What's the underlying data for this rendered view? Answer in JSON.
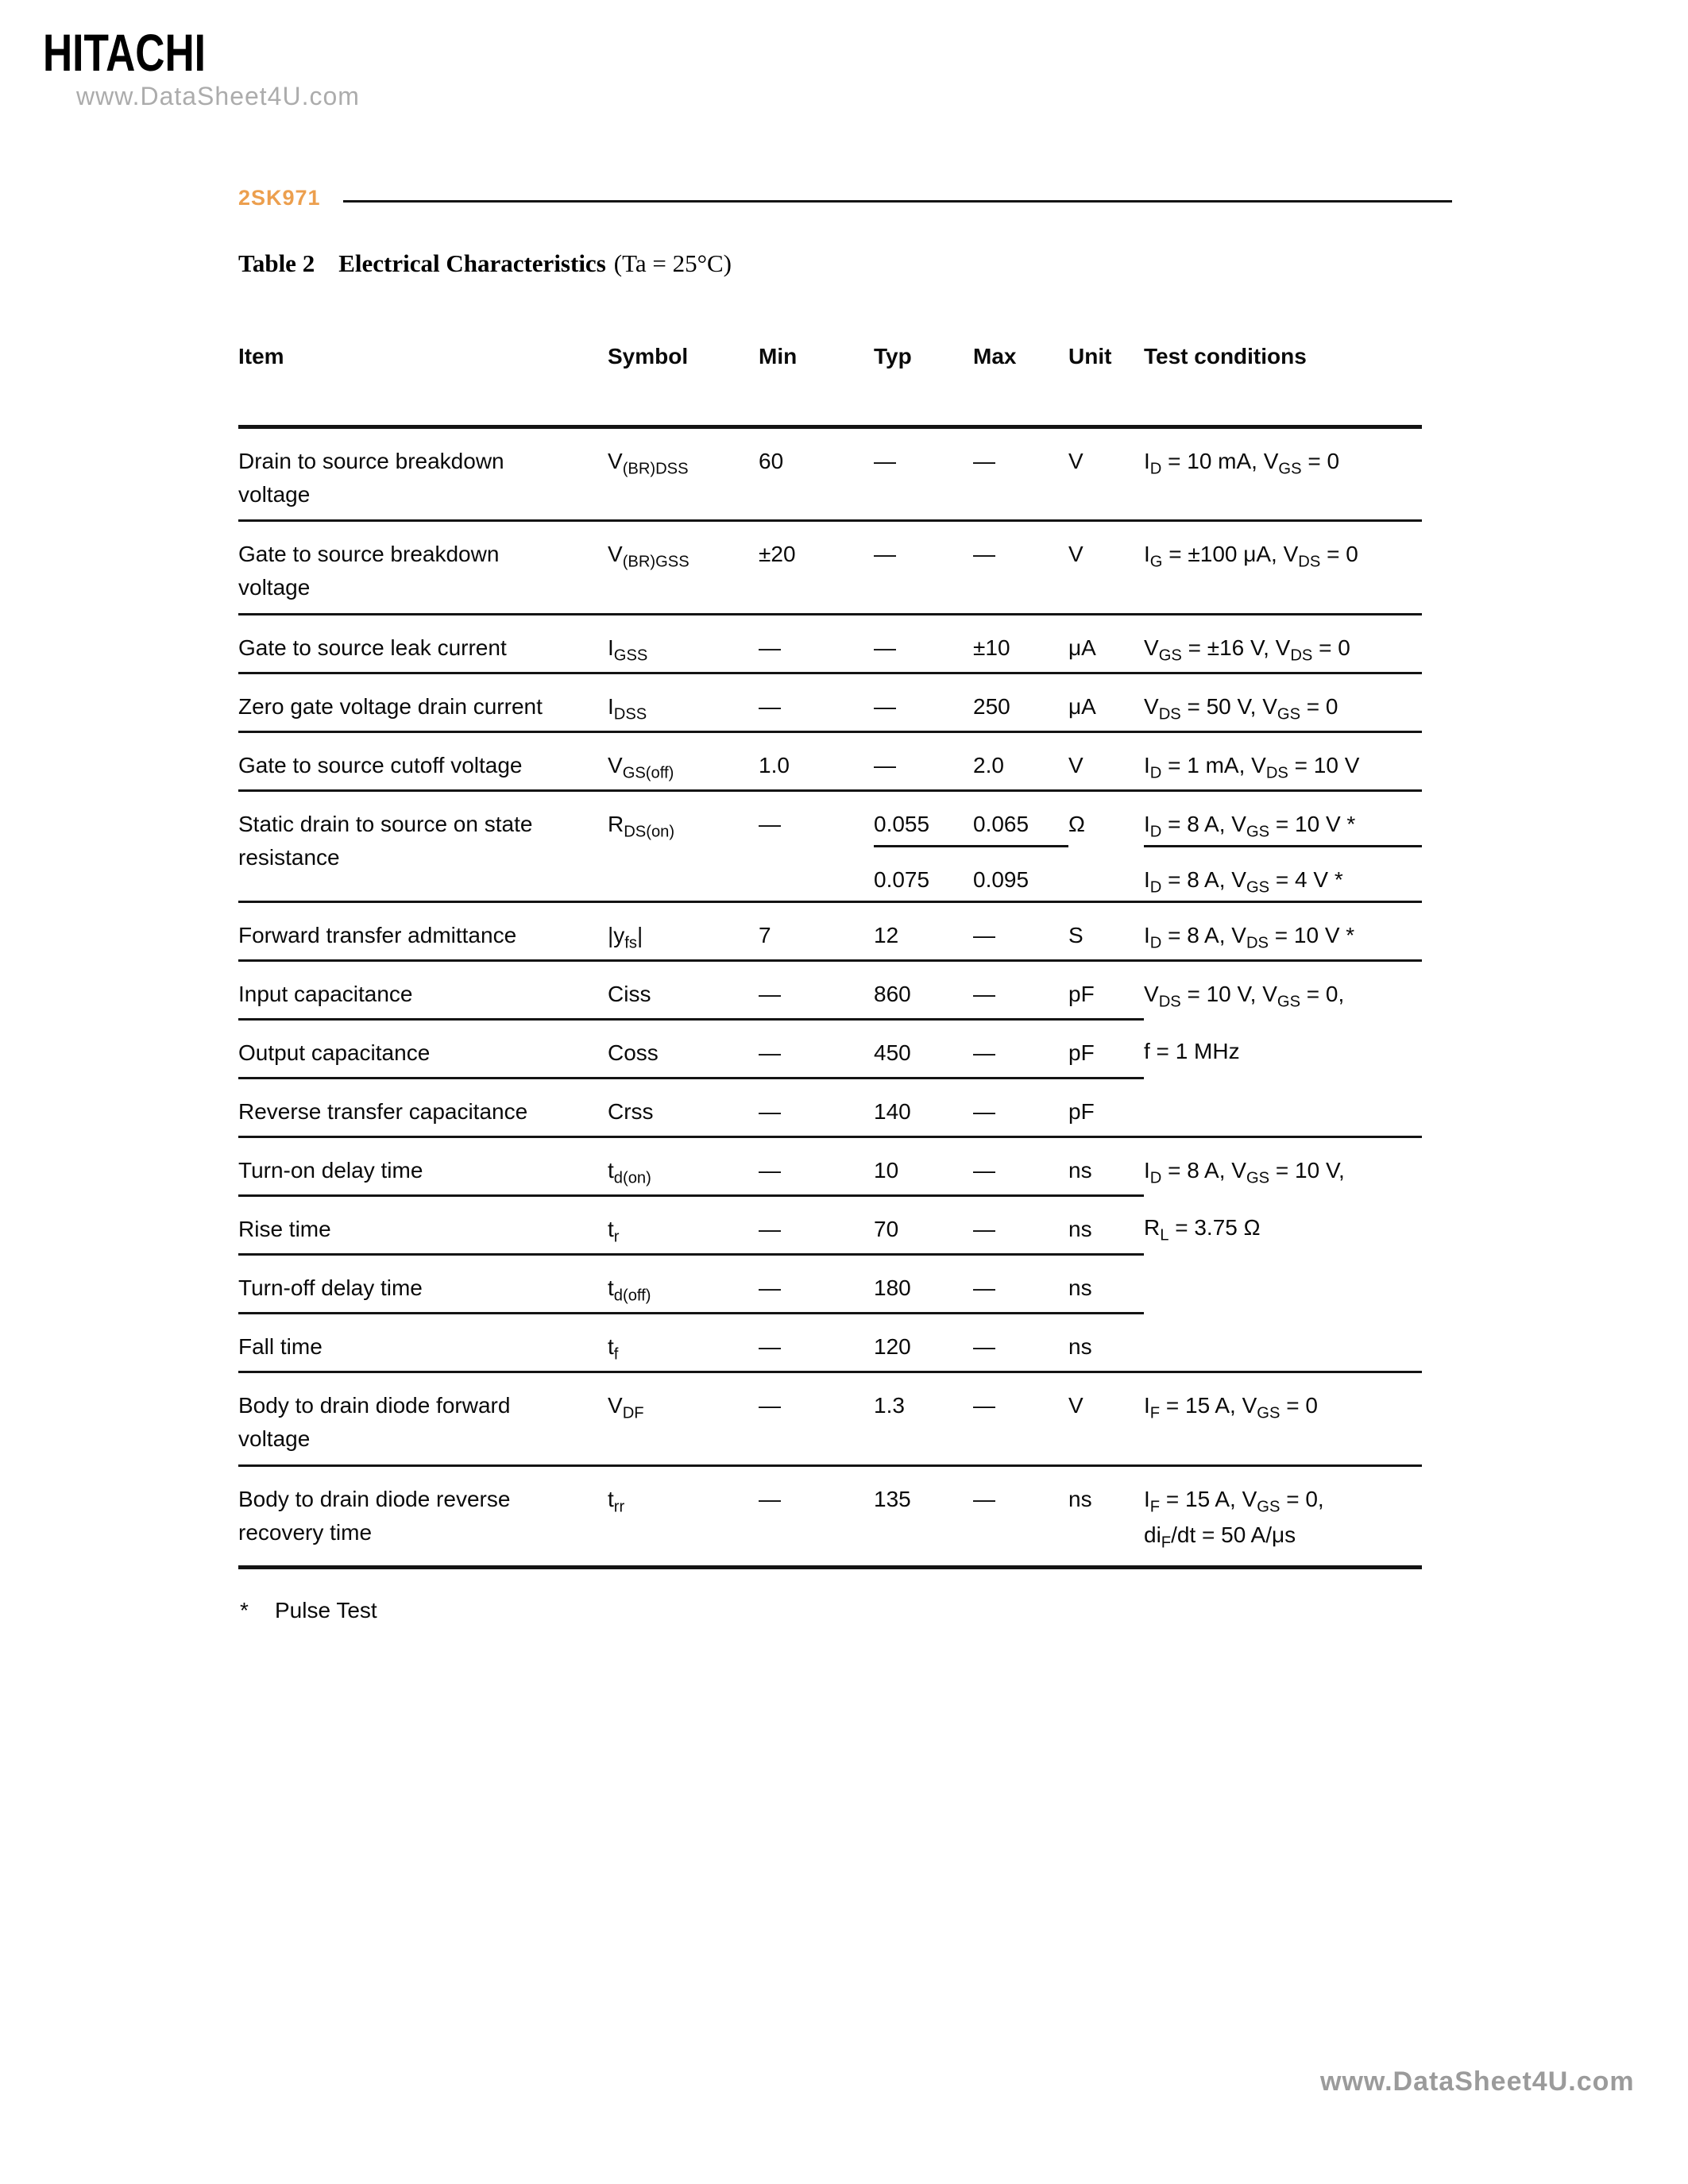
{
  "header": {
    "logo": "HITACHI",
    "watermark": "www.DataSheet4U.com",
    "part_number": "2SK971"
  },
  "title": {
    "label": "Table 2",
    "name": "Electrical Characteristics",
    "condition": "(Ta = 25°C)"
  },
  "table": {
    "columns": [
      "Item",
      "Symbol",
      "Min",
      "Typ",
      "Max",
      "Unit",
      "Test conditions"
    ],
    "rows": [
      {
        "item": "Drain to source breakdown\nvoltage",
        "symbol": "V~(BR)DSS~",
        "min": "60",
        "typ": "—",
        "max": "—",
        "unit": "V",
        "cond": "I~D~ = 10 mA, V~GS~ = 0"
      },
      {
        "item": "Gate to source breakdown\nvoltage",
        "symbol": "V~(BR)GSS~",
        "min": "±20",
        "typ": "—",
        "max": "—",
        "unit": "V",
        "cond": "I~G~ = ±100 μA, V~DS~ = 0"
      },
      {
        "item": "Gate to source leak current",
        "symbol": "I~GSS~",
        "min": "—",
        "typ": "—",
        "max": "±10",
        "unit": "μA",
        "cond": "V~GS~ = ±16 V, V~DS~ = 0"
      },
      {
        "item": "Zero gate voltage drain current",
        "symbol": "I~DSS~",
        "min": "—",
        "typ": "—",
        "max": "250",
        "unit": "μA",
        "cond": "V~DS~ = 50 V, V~GS~ = 0"
      },
      {
        "item": "Gate to source cutoff voltage",
        "symbol": "V~GS(off)~",
        "min": "1.0",
        "typ": "—",
        "max": "2.0",
        "unit": "V",
        "cond": "I~D~ = 1 mA, V~DS~ = 10 V"
      },
      {
        "item": "Static drain to source on state\nresistance",
        "symbol": "R~DS(on)~",
        "min": "—",
        "typ": "0.055",
        "max": "0.065",
        "unit": "Ω",
        "cond": "I~D~ = 8 A, V~GS~ = 10 V *",
        "typ2": "0.075",
        "max2": "0.095",
        "cond2": "I~D~ = 8 A, V~GS~ = 4 V *"
      },
      {
        "item": "Forward transfer admittance",
        "symbol": "|y~fs~|",
        "min": "7",
        "typ": "12",
        "max": "—",
        "unit": "S",
        "cond": "I~D~ = 8 A, V~DS~ = 10 V *"
      },
      {
        "item": "Input capacitance",
        "symbol": "Ciss",
        "min": "—",
        "typ": "860",
        "max": "—",
        "unit": "pF",
        "cond": "V~DS~ = 10 V, V~GS~ = 0,"
      },
      {
        "item": "Output capacitance",
        "symbol": "Coss",
        "min": "—",
        "typ": "450",
        "max": "—",
        "unit": "pF",
        "cond": "f = 1 MHz"
      },
      {
        "item": "Reverse transfer capacitance",
        "symbol": "Crss",
        "min": "—",
        "typ": "140",
        "max": "—",
        "unit": "pF",
        "cond": ""
      },
      {
        "item": "Turn-on delay time",
        "symbol": "t~d(on)~",
        "min": "—",
        "typ": "10",
        "max": "—",
        "unit": "ns",
        "cond": "I~D~ = 8 A, V~GS~ = 10 V,"
      },
      {
        "item": "Rise time",
        "symbol": "t~r~",
        "min": "—",
        "typ": "70",
        "max": "—",
        "unit": "ns",
        "cond": "R~L~ = 3.75 Ω"
      },
      {
        "item": "Turn-off delay time",
        "symbol": "t~d(off)~",
        "min": "—",
        "typ": "180",
        "max": "—",
        "unit": "ns",
        "cond": ""
      },
      {
        "item": "Fall time",
        "symbol": "t~f~",
        "min": "—",
        "typ": "120",
        "max": "—",
        "unit": "ns",
        "cond": ""
      },
      {
        "item": "Body to drain diode forward\nvoltage",
        "symbol": "V~DF~",
        "min": "—",
        "typ": "1.3",
        "max": "—",
        "unit": "V",
        "cond": "I~F~ = 15 A, V~GS~ = 0"
      },
      {
        "item": "Body to drain diode reverse\nrecovery time",
        "symbol": "t~rr~",
        "min": "—",
        "typ": "135",
        "max": "—",
        "unit": "ns",
        "cond": "I~F~ = 15 A, V~GS~ = 0,\ndi~F~/dt = 50 A/μs"
      }
    ]
  },
  "footnote": {
    "marker": "*",
    "text": "Pulse Test"
  },
  "footer": {
    "watermark": "www.DataSheet4U.com"
  },
  "colors": {
    "accent_orange": "#EC9F4E",
    "watermark_gray": "#ACACAC",
    "footer_gray": "#9B9B9B",
    "rule_black": "#141414"
  }
}
